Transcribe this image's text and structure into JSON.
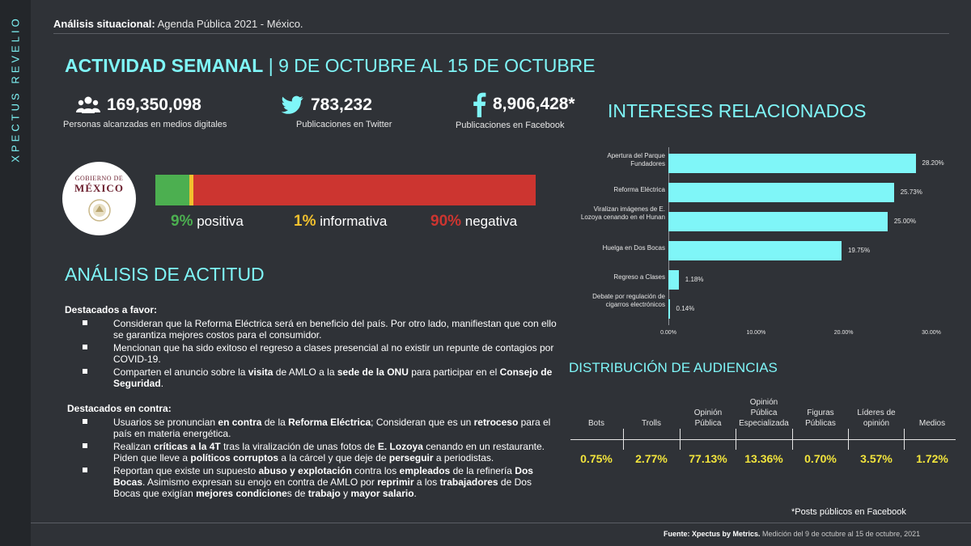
{
  "brand": "XPECTUS REVELIO",
  "header": {
    "label": "Análisis situacional:",
    "text": " Agenda Pública 2021 - México."
  },
  "title": {
    "bold": "ACTIVIDAD SEMANAL",
    "rest": " | 9 DE OCTUBRE AL 15 DE OCTUBRE"
  },
  "stats": [
    {
      "icon": "people-icon",
      "value": "169,350,098",
      "label": "Personas alcanzadas en medios digitales"
    },
    {
      "icon": "twitter-icon",
      "value": "783,232",
      "label": "Publicaciones en Twitter"
    },
    {
      "icon": "facebook-icon",
      "value": "8,906,428*",
      "label": "Publicaciones en Facebook"
    }
  ],
  "logo": {
    "top": "GOBIERNO DE",
    "main": "MÉXICO"
  },
  "sentiment": {
    "segments": [
      {
        "share": 9,
        "color": "#4caf50"
      },
      {
        "share": 1,
        "color": "#f2c12e"
      },
      {
        "share": 90,
        "color": "#cc3530"
      }
    ],
    "labels": [
      {
        "pct": "9%",
        "text": " positiva",
        "color": "#4caf50"
      },
      {
        "pct": "1%",
        "text": " informativa",
        "color": "#f2c12e"
      },
      {
        "pct": "90%",
        "text": " negativa",
        "color": "#cc3530"
      }
    ]
  },
  "attitude": {
    "title": "ANÁLISIS DE ACTITUD",
    "favor_title": "Destacados a favor:",
    "favor": [
      [
        {
          "t": "Consideran que la Reforma Eléctrica será en beneficio del país. Por otro lado, manifiestan que con ello se garantiza mejores costos para el consumidor."
        }
      ],
      [
        {
          "t": "Mencionan que ha sido exitoso el regreso a clases presencial al no existir un repunte de contagios por COVID-19."
        }
      ],
      [
        {
          "t": "Comparten el anuncio sobre la "
        },
        {
          "t": "visita",
          "b": true
        },
        {
          "t": " de AMLO a la "
        },
        {
          "t": "sede de la ONU",
          "b": true
        },
        {
          "t": " para participar en el "
        },
        {
          "t": "Consejo de Seguridad",
          "b": true
        },
        {
          "t": "."
        }
      ]
    ],
    "contra_title": "Destacados en contra:",
    "contra": [
      [
        {
          "t": "Usuarios se pronuncian "
        },
        {
          "t": "en contra",
          "b": true
        },
        {
          "t": " de la "
        },
        {
          "t": "Reforma Eléctrica",
          "b": true
        },
        {
          "t": "; Consideran que es un "
        },
        {
          "t": "retroceso",
          "b": true
        },
        {
          "t": " para el país en materia energética."
        }
      ],
      [
        {
          "t": "Realizan "
        },
        {
          "t": "críticas a la 4T",
          "b": true
        },
        {
          "t": " tras la viralización de unas fotos de "
        },
        {
          "t": "E. Lozoya",
          "b": true
        },
        {
          "t": " cenando en un restaurante. Piden que lleve a "
        },
        {
          "t": "políticos corruptos",
          "b": true
        },
        {
          "t": " a la cárcel y que deje de "
        },
        {
          "t": "perseguir",
          "b": true
        },
        {
          "t": " a periodistas."
        }
      ],
      [
        {
          "t": "Reportan que existe un supuesto "
        },
        {
          "t": "abuso y explotación",
          "b": true
        },
        {
          "t": " contra los "
        },
        {
          "t": "empleados",
          "b": true
        },
        {
          "t": " de la refinería "
        },
        {
          "t": "Dos Bocas",
          "b": true
        },
        {
          "t": ". Asimismo expresan su enojo en contra de AMLO por "
        },
        {
          "t": "reprimir",
          "b": true
        },
        {
          "t": " a los "
        },
        {
          "t": "trabajadores",
          "b": true
        },
        {
          "t": " de Dos Bocas que exigían "
        },
        {
          "t": "mejores condicione",
          "b": true
        },
        {
          "t": "s de "
        },
        {
          "t": "trabajo",
          "b": true
        },
        {
          "t": " y "
        },
        {
          "t": "mayor salario",
          "b": true
        },
        {
          "t": "."
        }
      ]
    ]
  },
  "interests_title": "INTERESES RELACIONADOS",
  "chart_data": {
    "type": "bar",
    "orientation": "horizontal",
    "categories": [
      "Apertura del Parque Fundadores",
      "Reforma Eléctrica",
      "Viralizan imágenes de E. Lozoya cenando en el Hunan",
      "Huelga en Dos Bocas",
      "Regreso a Clases",
      "Debate por regulación de cigarros electrónicos"
    ],
    "values": [
      28.2,
      25.73,
      25.0,
      19.75,
      1.18,
      0.14
    ],
    "value_labels": [
      "28.20%",
      "25.73%",
      "25.00%",
      "19.75%",
      "1.18%",
      "0.14%"
    ],
    "xlim": [
      0,
      30
    ],
    "xticks": [
      "0.00%",
      "10.00%",
      "20.00%",
      "30.00%"
    ],
    "bar_color": "#7ff6f8",
    "grid": false
  },
  "audiences": {
    "title": "DISTRIBUCIÓN DE AUDIENCIAS",
    "columns": [
      {
        "label": "Bots",
        "value": "0.75%"
      },
      {
        "label": "Trolls",
        "value": "2.77%"
      },
      {
        "label": "Opinión Pública",
        "value": "77.13%"
      },
      {
        "label": "Opinión Pública Especializada",
        "value": "13.36%"
      },
      {
        "label": "Figuras Públicas",
        "value": "0.70%"
      },
      {
        "label": "Líderes de opinión",
        "value": "3.57%"
      },
      {
        "label": "Medios",
        "value": "1.72%"
      }
    ]
  },
  "fb_note": "*Posts públicos en Facebook",
  "footer": {
    "label": "Fuente: Xpectus by Metrics.",
    "text": " Medición del 9 de octubre al 15 de octubre, 2021"
  }
}
